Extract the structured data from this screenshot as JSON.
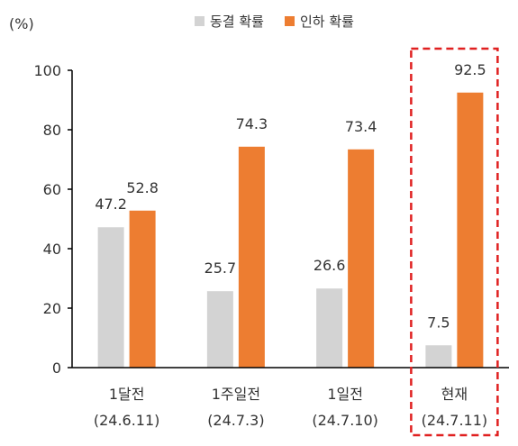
{
  "chart_data": {
    "type": "bar",
    "unit_label": "(%)",
    "categories": [
      {
        "line1": "1달전",
        "line2": "(24.6.11)"
      },
      {
        "line1": "1주일전",
        "line2": "(24.7.3)"
      },
      {
        "line1": "1일전",
        "line2": "(24.7.10)"
      },
      {
        "line1": "현재",
        "line2": "(24.7.11)"
      }
    ],
    "series": [
      {
        "name": "동결 확률",
        "color": "#d3d3d3",
        "values": [
          47.2,
          25.7,
          26.6,
          7.5
        ]
      },
      {
        "name": "인하 확률",
        "color": "#ed7d31",
        "values": [
          52.8,
          74.3,
          73.4,
          92.5
        ]
      }
    ],
    "ylim": [
      0,
      100
    ],
    "yticks": [
      0,
      20,
      40,
      60,
      80,
      100
    ],
    "legend_position": "top",
    "grid": false,
    "highlight": {
      "category_index": 3,
      "style": "dashed-box",
      "color": "#e02020"
    }
  }
}
